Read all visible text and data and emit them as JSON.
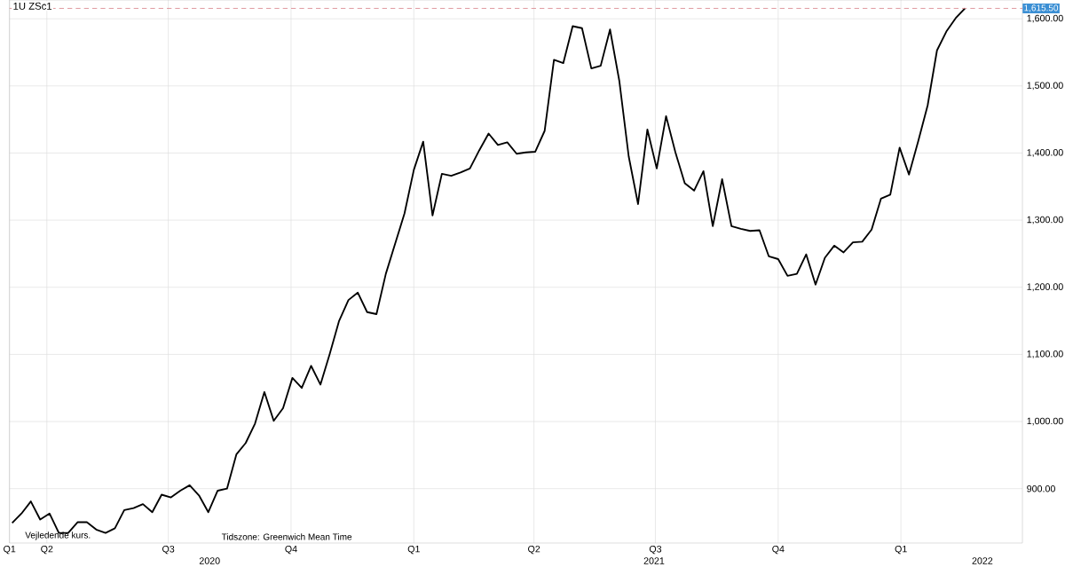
{
  "chart_data": {
    "type": "line",
    "title": "1U   ZSc1",
    "x": [
      "2020-03-06",
      "2020-03-13",
      "2020-03-20",
      "2020-03-27",
      "2020-04-03",
      "2020-04-10",
      "2020-04-17",
      "2020-04-24",
      "2020-05-01",
      "2020-05-08",
      "2020-05-15",
      "2020-05-22",
      "2020-05-29",
      "2020-06-05",
      "2020-06-12",
      "2020-06-19",
      "2020-06-26",
      "2020-07-03",
      "2020-07-10",
      "2020-07-17",
      "2020-07-24",
      "2020-07-31",
      "2020-08-07",
      "2020-08-14",
      "2020-08-21",
      "2020-08-28",
      "2020-09-04",
      "2020-09-11",
      "2020-09-18",
      "2020-09-25",
      "2020-10-02",
      "2020-10-09",
      "2020-10-16",
      "2020-10-23",
      "2020-10-30",
      "2020-11-06",
      "2020-11-13",
      "2020-11-20",
      "2020-11-27",
      "2020-12-04",
      "2020-12-11",
      "2020-12-18",
      "2020-12-25",
      "2021-01-01",
      "2021-01-08",
      "2021-01-15",
      "2021-01-22",
      "2021-01-29",
      "2021-02-05",
      "2021-02-12",
      "2021-02-19",
      "2021-02-26",
      "2021-03-05",
      "2021-03-12",
      "2021-03-19",
      "2021-03-26",
      "2021-04-02",
      "2021-04-09",
      "2021-04-16",
      "2021-04-23",
      "2021-04-30",
      "2021-05-07",
      "2021-05-14",
      "2021-05-21",
      "2021-05-28",
      "2021-06-04",
      "2021-06-11",
      "2021-06-18",
      "2021-06-25",
      "2021-07-02",
      "2021-07-09",
      "2021-07-16",
      "2021-07-23",
      "2021-07-30",
      "2021-08-06",
      "2021-08-13",
      "2021-08-20",
      "2021-08-27",
      "2021-09-03",
      "2021-09-10",
      "2021-09-17",
      "2021-09-24",
      "2021-10-01",
      "2021-10-08",
      "2021-10-15",
      "2021-10-22",
      "2021-10-29",
      "2021-11-05",
      "2021-11-12",
      "2021-11-19",
      "2021-11-26",
      "2021-12-03",
      "2021-12-10",
      "2021-12-17",
      "2021-12-24",
      "2021-12-31",
      "2022-01-07",
      "2022-01-14",
      "2022-01-21",
      "2022-01-28",
      "2022-02-04",
      "2022-02-11",
      "2022-02-18"
    ],
    "series": [
      {
        "color": "#000000",
        "values": [
          849,
          863,
          881,
          854,
          863,
          834,
          834,
          850,
          850,
          839,
          834,
          841,
          868,
          871,
          877,
          865,
          891,
          887,
          897,
          905,
          890,
          865,
          897,
          900,
          951,
          968,
          997,
          1044,
          1001,
          1020,
          1065,
          1050,
          1083,
          1055,
          1101,
          1150,
          1181,
          1192,
          1163,
          1160,
          1220,
          1265,
          1310,
          1375,
          1417,
          1307,
          1369,
          1366,
          1371,
          1377,
          1404,
          1429,
          1412,
          1416,
          1399,
          1401,
          1402,
          1433,
          1539,
          1534,
          1589,
          1586,
          1526,
          1530,
          1584,
          1507,
          1395,
          1324,
          1435,
          1377,
          1455,
          1401,
          1355,
          1344,
          1373,
          1291,
          1361,
          1291,
          1287,
          1284,
          1285,
          1246,
          1242,
          1217,
          1220,
          1249,
          1204,
          1244,
          1262,
          1252,
          1267,
          1268,
          1286,
          1332,
          1338,
          1408,
          1368,
          1418,
          1471,
          1553,
          1581,
          1601,
          1615.5
        ]
      }
    ],
    "xlim": [
      "2020-03-04",
      "2022-04-02"
    ],
    "xticks": [
      {
        "value": "2020-03-04",
        "label": "Q1"
      },
      {
        "value": "2020-04-01",
        "label": "Q2"
      },
      {
        "value": "2020-07-01",
        "label": "Q3"
      },
      {
        "value": "2020-10-01",
        "label": "Q4"
      },
      {
        "value": "2021-01-01",
        "label": "Q1"
      },
      {
        "value": "2021-04-01",
        "label": "Q2"
      },
      {
        "value": "2021-07-01",
        "label": "Q3"
      },
      {
        "value": "2021-10-01",
        "label": "Q4"
      },
      {
        "value": "2022-01-01",
        "label": "Q1"
      }
    ],
    "x2lim": [
      "2020-03-04",
      "2022-04-02"
    ],
    "x2ticks": [
      {
        "value": "2020-08-01",
        "label": "2020"
      },
      {
        "value": "2021-06-30",
        "label": "2021"
      },
      {
        "value": "2022-03-03",
        "label": "2022"
      }
    ],
    "ylim": [
      819,
      1628
    ],
    "yticks": [
      {
        "value": 900,
        "label": "900.00"
      },
      {
        "value": 1000,
        "label": "1,000.00"
      },
      {
        "value": 1100,
        "label": "1,100.00"
      },
      {
        "value": 1200,
        "label": "1,200.00"
      },
      {
        "value": 1300,
        "label": "1,300.00"
      },
      {
        "value": 1400,
        "label": "1,400.00"
      },
      {
        "value": 1500,
        "label": "1,500.00"
      },
      {
        "value": 1600,
        "label": "1,600.00"
      }
    ],
    "ref_lines": [
      {
        "axis": "y",
        "value": 1615.5,
        "label": "1,615.50",
        "color": "#d98088",
        "line_style": "dashed"
      }
    ],
    "annotations": [
      "Vejledende kurs.",
      "Tidszone: Greenwich Mean Time"
    ],
    "grid": true,
    "marker": "none",
    "line_style": "solid"
  }
}
